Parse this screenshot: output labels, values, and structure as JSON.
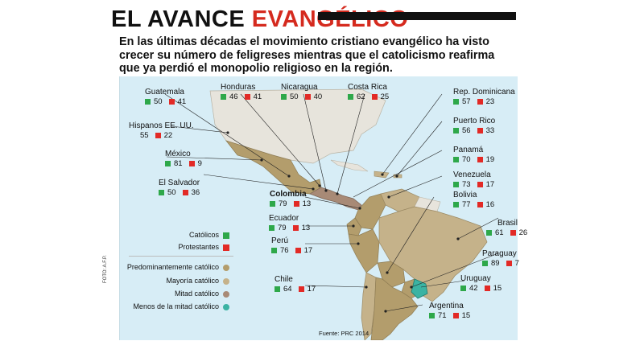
{
  "title": {
    "main": "EL AVANCE",
    "accent": "EVANGÉLICO"
  },
  "lead": "En las últimas décadas el movimiento cristiano evangélico ha visto crecer su número de feligreses mientras que el catolicismo reafirma que ya perdió el monopolio religioso en la región.",
  "colors": {
    "catolicos": "#2ea84a",
    "protestantes": "#e22a26",
    "accent": "#d52a1e",
    "predominante": "#b39d6c",
    "mayoria": "#c5b28a",
    "mitad": "#a88a76",
    "menos_mitad": "#3bb3a3",
    "sea": "#d7edf6",
    "land_other": "#e7e4dc"
  },
  "countries": [
    {
      "name": "Guatemala",
      "catolicos": "50",
      "protestantes": "41",
      "bold": false
    },
    {
      "name": "Honduras",
      "catolicos": "46",
      "protestantes": "41",
      "bold": false
    },
    {
      "name": "Nicaragua",
      "catolicos": "50",
      "protestantes": "40",
      "bold": false
    },
    {
      "name": "Costa Rica",
      "catolicos": "62",
      "protestantes": "25",
      "bold": false
    },
    {
      "name": "Rep. Dominicana",
      "catolicos": "57",
      "protestantes": "23",
      "bold": false
    },
    {
      "name": "Hispanos EE. UU.",
      "catolicos": "55",
      "protestantes": "22",
      "bold": false
    },
    {
      "name": "Puerto Rico",
      "catolicos": "56",
      "protestantes": "33",
      "bold": false
    },
    {
      "name": "México",
      "catolicos": "81",
      "protestantes": "9",
      "bold": false
    },
    {
      "name": "Panamá",
      "catolicos": "70",
      "protestantes": "19",
      "bold": false
    },
    {
      "name": "El Salvador",
      "catolicos": "50",
      "protestantes": "36",
      "bold": false
    },
    {
      "name": "Venezuela",
      "catolicos": "73",
      "protestantes": "17",
      "bold": false
    },
    {
      "name": "Colombia",
      "catolicos": "79",
      "protestantes": "13",
      "bold": true
    },
    {
      "name": "Bolivia",
      "catolicos": "77",
      "protestantes": "16",
      "bold": false
    },
    {
      "name": "Ecuador",
      "catolicos": "79",
      "protestantes": "13",
      "bold": false
    },
    {
      "name": "Brasil",
      "catolicos": "61",
      "protestantes": "26",
      "bold": false
    },
    {
      "name": "Perú",
      "catolicos": "76",
      "protestantes": "17",
      "bold": false
    },
    {
      "name": "Paraguay",
      "catolicos": "89",
      "protestantes": "7",
      "bold": false
    },
    {
      "name": "Chile",
      "catolicos": "64",
      "protestantes": "17",
      "bold": false
    },
    {
      "name": "Uruguay",
      "catolicos": "42",
      "protestantes": "15",
      "bold": false
    },
    {
      "name": "Argentina",
      "catolicos": "71",
      "protestantes": "15",
      "bold": false
    }
  ],
  "legend": {
    "catolicos": "Católicos",
    "protestantes": "Protestantes",
    "predominante": "Predominantemente católico",
    "mayoria": "Mayoría católico",
    "mitad": "Mitad católico",
    "menos_mitad": "Menos de la mitad  católico"
  },
  "source": "Fuente: PRC 2014",
  "photo_credit": "FOTO: A.F.P."
}
